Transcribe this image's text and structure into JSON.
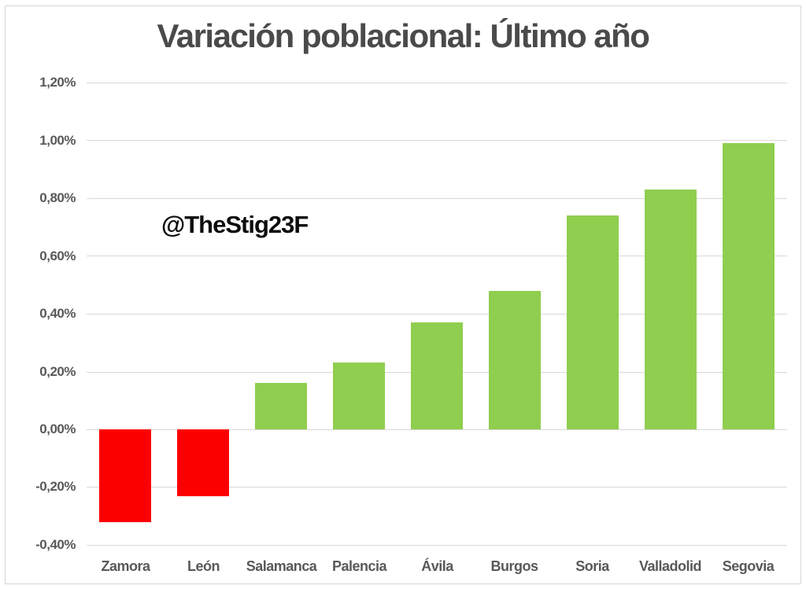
{
  "header": {
    "title": "Variación poblacional: Último año"
  },
  "watermark": {
    "text": "@TheStig23F"
  },
  "chart_data": {
    "type": "bar",
    "title": "Variación poblacional: Último año",
    "categories": [
      "Zamora",
      "León",
      "Salamanca",
      "Palencia",
      "Ávila",
      "Burgos",
      "Soria",
      "Valladolid",
      "Segovia"
    ],
    "values": [
      -0.32,
      -0.23,
      0.16,
      0.23,
      0.37,
      0.48,
      0.74,
      0.83,
      0.99
    ],
    "unit": "%",
    "xlabel": "",
    "ylabel": "",
    "ylim": [
      -0.4,
      1.2
    ],
    "y_ticks": [
      1.2,
      1.0,
      0.8,
      0.6,
      0.4,
      0.2,
      0.0,
      -0.2,
      -0.4
    ],
    "y_tick_labels": [
      "1,20%",
      "1,00%",
      "0,80%",
      "0,60%",
      "0,40%",
      "0,20%",
      "0,00%",
      "-0,20%",
      "-0,40%"
    ],
    "grid": true,
    "legend_position": "none",
    "annotations": [
      "@TheStig23F"
    ],
    "colors": {
      "positive_bar": "#8FCE4E",
      "negative_bar": "#FC0000",
      "gridline": "#D9D9D9",
      "axis_text": "#595959",
      "title_text": "#4A4A4A",
      "watermark_text": "#0D0D0D",
      "background": "#FFFFFF",
      "frame_border": "#D6D6D6"
    }
  }
}
